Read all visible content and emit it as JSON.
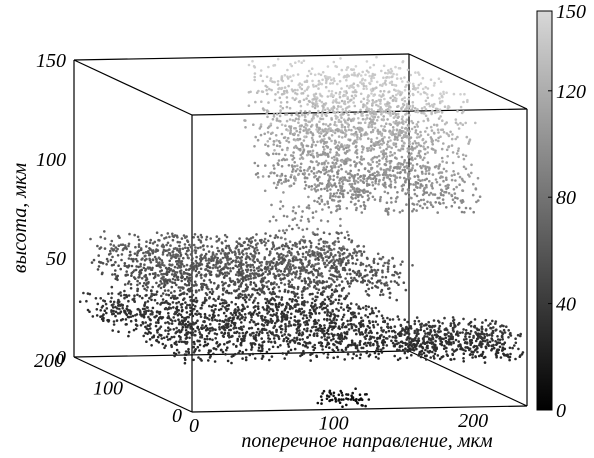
{
  "chart_data": {
    "type": "scatter",
    "title": "",
    "zlabel": "высота, мкм",
    "xlabel": "поперечное направление, мкм",
    "ylabel": "",
    "xlim": [
      0,
      240
    ],
    "ylim": [
      0,
      200
    ],
    "zlim": [
      0,
      150
    ],
    "x_ticks": [
      "0",
      "100",
      "200"
    ],
    "y_ticks": [
      "0",
      "100",
      "200"
    ],
    "z_ticks": [
      "0",
      "50",
      "100",
      "150"
    ],
    "colorbar": {
      "range": [
        0,
        150
      ],
      "ticks": [
        "0",
        "40",
        "80",
        "120",
        "150"
      ],
      "colormap": "grayscale"
    },
    "series": [
      {
        "kind": "sparse-floor",
        "x": [
          95,
          130
        ],
        "y": [
          0,
          20
        ],
        "z": [
          0,
          8
        ],
        "count": 60
      },
      {
        "kind": "low-slab",
        "x": [
          0,
          180
        ],
        "y": [
          10,
          200
        ],
        "z": [
          22,
          36
        ],
        "count": 1600
      },
      {
        "kind": "low-right",
        "x": [
          170,
          240
        ],
        "y": [
          0,
          70
        ],
        "z": [
          22,
          36
        ],
        "count": 500
      },
      {
        "kind": "mid-slab",
        "x": [
          5,
          185
        ],
        "y": [
          60,
          190
        ],
        "z": [
          45,
          65
        ],
        "count": 1500
      },
      {
        "kind": "high-upper",
        "x": [
          120,
          230
        ],
        "y": [
          60,
          200
        ],
        "z": [
          110,
          150
        ],
        "count": 1300
      },
      {
        "kind": "high-lower",
        "x": [
          120,
          230
        ],
        "y": [
          40,
          190
        ],
        "z": [
          90,
          110
        ],
        "count": 700
      },
      {
        "kind": "vertical-sparse",
        "x": [
          70,
          120
        ],
        "y": [
          0,
          60
        ],
        "z": [
          60,
          140
        ],
        "count": 160
      }
    ]
  }
}
